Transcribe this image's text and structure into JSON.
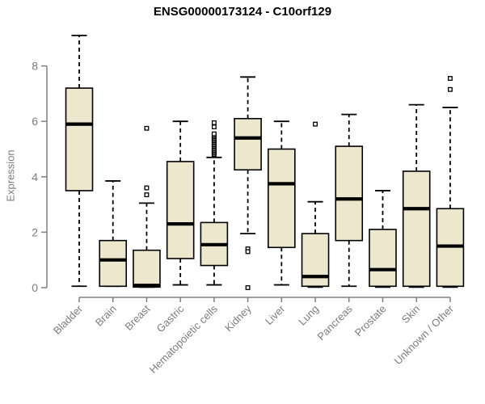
{
  "chart_data": {
    "type": "boxplot",
    "title": "ENSG00000173124 - C10orf129",
    "ylabel": "Expression",
    "xlabel": "",
    "ylim": [
      0,
      9.4
    ],
    "yticks": [
      0,
      2,
      4,
      6,
      8
    ],
    "grid": false,
    "legend": "none",
    "categories": [
      "Bladder",
      "Brain",
      "Breast",
      "Gastric",
      "Hematopoietic cells",
      "Kidney",
      "Liver",
      "Lung",
      "Pancreas",
      "Prostate",
      "Skin",
      "Unknown / Other"
    ],
    "series": [
      {
        "name": "Bladder",
        "whisker_low": 0.05,
        "q1": 3.5,
        "median": 5.9,
        "q3": 7.2,
        "whisker_high": 9.1,
        "outliers": []
      },
      {
        "name": "Brain",
        "whisker_low": 0.05,
        "q1": 0.05,
        "median": 1.0,
        "q3": 1.7,
        "whisker_high": 3.85,
        "outliers": []
      },
      {
        "name": "Breast",
        "whisker_low": 0.02,
        "q1": 0.02,
        "median": 0.08,
        "q3": 1.35,
        "whisker_high": 3.05,
        "outliers": [
          3.35,
          3.6,
          5.75
        ]
      },
      {
        "name": "Gastric",
        "whisker_low": 0.1,
        "q1": 1.05,
        "median": 2.3,
        "q3": 4.55,
        "whisker_high": 6.0,
        "outliers": []
      },
      {
        "name": "Hematopoietic cells",
        "whisker_low": 0.1,
        "q1": 0.8,
        "median": 1.55,
        "q3": 2.35,
        "whisker_high": 4.7,
        "outliers": [
          4.8,
          4.85,
          4.9,
          4.95,
          5.0,
          5.05,
          5.1,
          5.15,
          5.2,
          5.25,
          5.3,
          5.35,
          5.4,
          5.45,
          5.5,
          5.55,
          5.8,
          5.95
        ]
      },
      {
        "name": "Kidney",
        "whisker_low": 1.95,
        "q1": 4.25,
        "median": 5.4,
        "q3": 6.1,
        "whisker_high": 7.6,
        "outliers": [
          1.4,
          1.3,
          0.0
        ]
      },
      {
        "name": "Liver",
        "whisker_low": 0.1,
        "q1": 1.45,
        "median": 3.75,
        "q3": 5.0,
        "whisker_high": 6.0,
        "outliers": []
      },
      {
        "name": "Lung",
        "whisker_low": 0.02,
        "q1": 0.05,
        "median": 0.4,
        "q3": 1.95,
        "whisker_high": 3.1,
        "outliers": [
          5.9
        ]
      },
      {
        "name": "Pancreas",
        "whisker_low": 0.05,
        "q1": 1.7,
        "median": 3.2,
        "q3": 5.1,
        "whisker_high": 6.25,
        "outliers": []
      },
      {
        "name": "Prostate",
        "whisker_low": 0.02,
        "q1": 0.05,
        "median": 0.65,
        "q3": 2.1,
        "whisker_high": 3.5,
        "outliers": []
      },
      {
        "name": "Skin",
        "whisker_low": 0.02,
        "q1": 0.05,
        "median": 2.85,
        "q3": 4.2,
        "whisker_high": 6.6,
        "outliers": []
      },
      {
        "name": "Unknown / Other",
        "whisker_low": 0.02,
        "q1": 0.05,
        "median": 1.5,
        "q3": 2.85,
        "whisker_high": 6.5,
        "outliers": [
          7.15,
          7.55
        ]
      }
    ],
    "colors": {
      "box_fill": "#ede8cd",
      "box_border": "#000000",
      "median": "#000000",
      "whisker": "#000000",
      "outlier_stroke": "#000000",
      "outlier_fill": "#ffffff",
      "axis": "#808080",
      "tick_label": "#7d7d7d",
      "title": "#000000",
      "background": "#ffffff"
    }
  }
}
